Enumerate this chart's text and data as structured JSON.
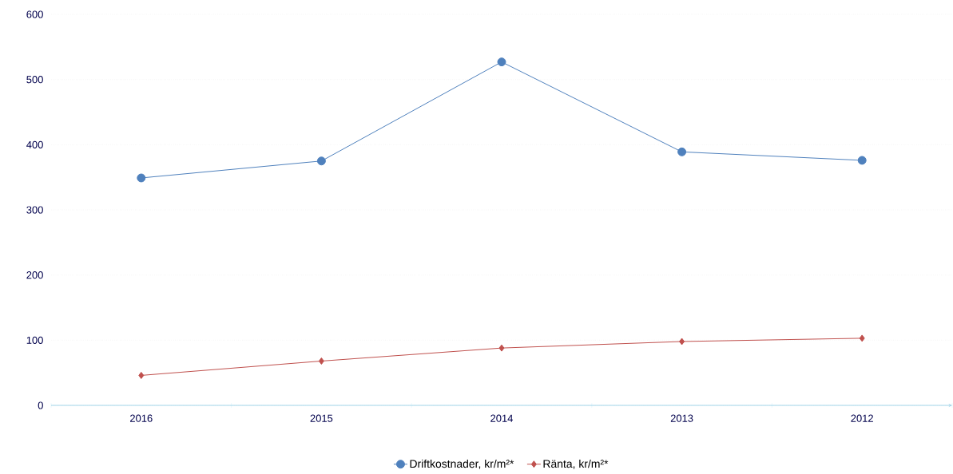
{
  "chart_data": {
    "type": "line",
    "categories": [
      "2016",
      "2015",
      "2014",
      "2013",
      "2012"
    ],
    "series": [
      {
        "name": "Driftkostnader, kr/m²*",
        "color": "#4f81bd",
        "marker": "circle",
        "values": [
          349,
          375,
          527,
          389,
          376
        ]
      },
      {
        "name": "Ränta, kr/m²*",
        "color": "#c0504d",
        "marker": "diamond",
        "values": [
          46,
          68,
          88,
          98,
          103
        ]
      }
    ],
    "ylim": [
      0,
      600
    ],
    "yticks": [
      0,
      100,
      200,
      300,
      400,
      500,
      600
    ],
    "grid": "y",
    "legend": "bottom"
  }
}
